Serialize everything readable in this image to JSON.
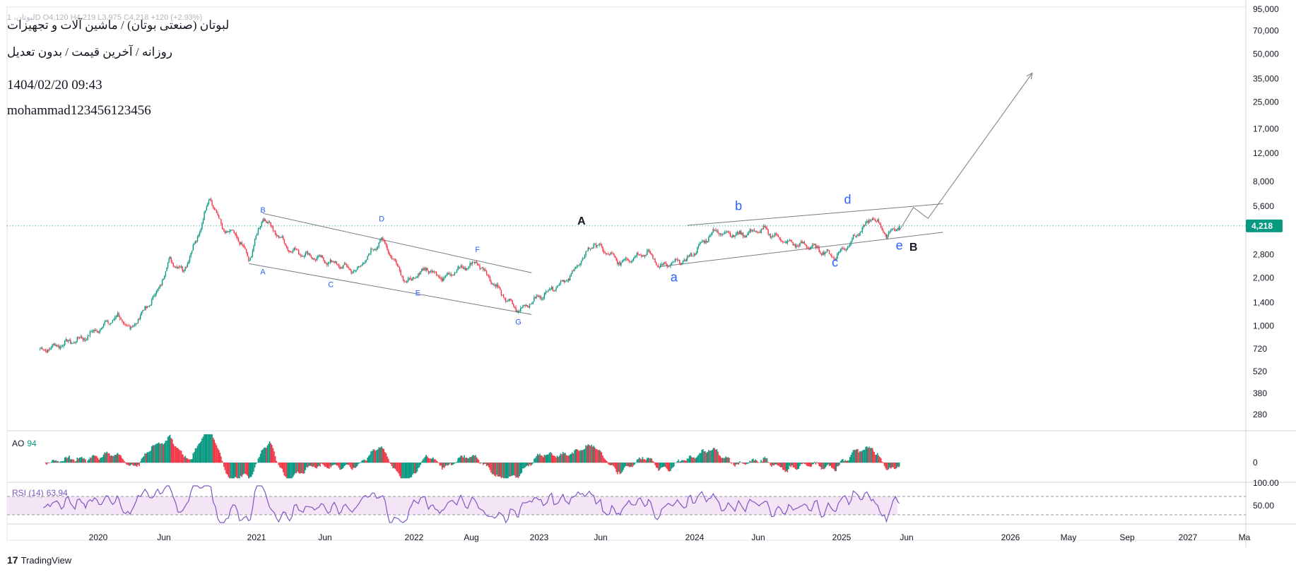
{
  "header": {
    "ohlc": "لبوتان، 1D O4,120 H4,219 L3,975 C4,218 +120 (+2.93%)",
    "title": "لبوتان (صنعتی بوتان) / ماشین آلات و تجهیزات",
    "subtitle": "روزانه / آخرین قیمت / بدون تعدیل",
    "datetime": "1404/02/20 09:43",
    "author": "mohammad123456123456"
  },
  "brand": {
    "logo": "17",
    "name": "TradingView"
  },
  "indicators": {
    "ao": {
      "name": "AO",
      "value": "94",
      "zero_label": "0"
    },
    "rsi": {
      "name": "RSI (14)",
      "value": "63.94",
      "labels": [
        "100.00",
        "50.00"
      ]
    }
  },
  "colors": {
    "up": "#089981",
    "down": "#f23645",
    "wave_label": "#2962ff",
    "rsi_line": "#7e57c2",
    "rsi_band": "#f3e5f5",
    "price_tag": "#089981",
    "trend_line": "#787b86"
  },
  "chart_data": {
    "type": "candlestick",
    "scale": "log",
    "y_ticks": [
      "95,000",
      "70,000",
      "50,000",
      "35,000",
      "25,000",
      "17,000",
      "12,000",
      "8,000",
      "5,600",
      "4,218",
      "2,800",
      "2,000",
      "1,400",
      "1,000",
      "720",
      "520",
      "380",
      "280"
    ],
    "x_ticks": [
      "2020",
      "Jun",
      "2021",
      "Jun",
      "2022",
      "Aug",
      "2023",
      "Jun",
      "2024",
      "Jun",
      "2025",
      "Jun",
      "2026",
      "May",
      "Sep",
      "2027",
      "Ma"
    ],
    "last_price": 4218,
    "price_series": [
      {
        "date": "2019-10",
        "value": 700
      },
      {
        "date": "2019-12",
        "value": 850
      },
      {
        "date": "2020-02",
        "value": 1150
      },
      {
        "date": "2020-03",
        "value": 950
      },
      {
        "date": "2020-05",
        "value": 1600
      },
      {
        "date": "2020-06",
        "value": 2600
      },
      {
        "date": "2020-07",
        "value": 2200
      },
      {
        "date": "2020-08",
        "value": 3400
      },
      {
        "date": "2020-09",
        "value": 6400
      },
      {
        "date": "2020-10",
        "value": 4000
      },
      {
        "date": "2020-11",
        "value": 3700
      },
      {
        "date": "2020-12",
        "value": 2600
      },
      {
        "date": "2021-01",
        "value": 4800
      },
      {
        "date": "2021-03",
        "value": 3000
      },
      {
        "date": "2021-06",
        "value": 2500
      },
      {
        "date": "2021-08",
        "value": 2200
      },
      {
        "date": "2021-10",
        "value": 3500
      },
      {
        "date": "2021-12",
        "value": 1850
      },
      {
        "date": "2022-02",
        "value": 2300
      },
      {
        "date": "2022-04",
        "value": 2000
      },
      {
        "date": "2022-06",
        "value": 2250
      },
      {
        "date": "2022-08",
        "value": 2500
      },
      {
        "date": "2022-10",
        "value": 1500
      },
      {
        "date": "2022-11",
        "value": 1250
      },
      {
        "date": "2023-01",
        "value": 1600
      },
      {
        "date": "2023-03",
        "value": 2000
      },
      {
        "date": "2023-05",
        "value": 3300
      },
      {
        "date": "2023-07",
        "value": 2500
      },
      {
        "date": "2023-09",
        "value": 2900
      },
      {
        "date": "2023-10",
        "value": 2350
      },
      {
        "date": "2023-12",
        "value": 2600
      },
      {
        "date": "2024-02",
        "value": 3900
      },
      {
        "date": "2024-04",
        "value": 3700
      },
      {
        "date": "2024-06",
        "value": 4000
      },
      {
        "date": "2024-08",
        "value": 3300
      },
      {
        "date": "2024-10",
        "value": 3150
      },
      {
        "date": "2024-12",
        "value": 2700
      },
      {
        "date": "2025-01",
        "value": 3200
      },
      {
        "date": "2025-03",
        "value": 4800
      },
      {
        "date": "2025-04",
        "value": 3700
      },
      {
        "date": "2025-05",
        "value": 4218
      }
    ],
    "wave_labels": [
      {
        "text": "B",
        "date": "2021-01",
        "price": 5100,
        "color": "blue",
        "size": "small"
      },
      {
        "text": "A",
        "date": "2021-01",
        "price": 2100,
        "color": "blue",
        "size": "small"
      },
      {
        "text": "D",
        "date": "2021-10",
        "price": 4500,
        "color": "blue",
        "size": "small"
      },
      {
        "text": "C",
        "date": "2021-06",
        "price": 1750,
        "color": "blue",
        "size": "small"
      },
      {
        "text": "E",
        "date": "2022-01",
        "price": 1550,
        "color": "blue",
        "size": "small"
      },
      {
        "text": "F",
        "date": "2022-08",
        "price": 2900,
        "color": "blue",
        "size": "small"
      },
      {
        "text": "G",
        "date": "2022-11",
        "price": 1020,
        "color": "blue",
        "size": "small"
      },
      {
        "text": "A",
        "date": "2023-04",
        "price": 4300,
        "color": "black",
        "size": "medium"
      },
      {
        "text": "a",
        "date": "2023-11",
        "price": 1900,
        "color": "blue",
        "size": "large"
      },
      {
        "text": "b",
        "date": "2024-04",
        "price": 5300,
        "color": "blue",
        "size": "large"
      },
      {
        "text": "c",
        "date": "2024-12",
        "price": 2350,
        "color": "blue",
        "size": "large"
      },
      {
        "text": "d",
        "date": "2025-01",
        "price": 5800,
        "color": "blue",
        "size": "large"
      },
      {
        "text": "e",
        "date": "2025-05",
        "price": 3000,
        "color": "blue",
        "size": "large"
      },
      {
        "text": "B",
        "date": "2025-06",
        "price": 2950,
        "color": "black",
        "size": "medium"
      }
    ],
    "trend_lines": [
      {
        "from": {
          "date": "2021-01",
          "price": 5050
        },
        "to": {
          "date": "2022-12",
          "price": 2150
        }
      },
      {
        "from": {
          "date": "2020-12",
          "price": 2450
        },
        "to": {
          "date": "2022-12",
          "price": 1180
        }
      },
      {
        "from": {
          "date": "2023-12",
          "price": 4250
        },
        "to": {
          "date": "2025-08",
          "price": 5800
        }
      },
      {
        "from": {
          "date": "2023-10",
          "price": 2350
        },
        "to": {
          "date": "2025-08",
          "price": 3850
        }
      }
    ],
    "projection": [
      {
        "date": "2025-05",
        "price": 3950
      },
      {
        "date": "2025-06",
        "price": 5500
      },
      {
        "date": "2025-07",
        "price": 4700
      },
      {
        "date": "2026-02",
        "price": 38000
      }
    ]
  }
}
